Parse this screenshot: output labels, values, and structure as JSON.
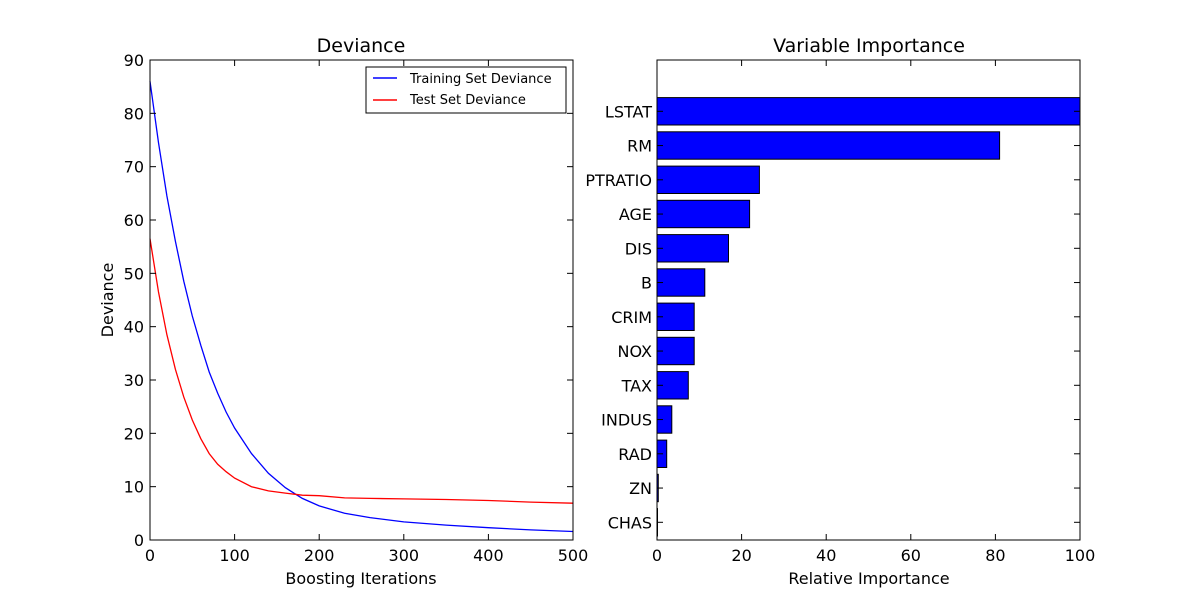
{
  "chart_data": [
    {
      "type": "line",
      "title": "Deviance",
      "xlabel": "Boosting Iterations",
      "ylabel": "Deviance",
      "xlim": [
        0,
        500
      ],
      "ylim": [
        0,
        90
      ],
      "xticks": [
        0,
        100,
        200,
        300,
        400,
        500
      ],
      "yticks": [
        0,
        10,
        20,
        30,
        40,
        50,
        60,
        70,
        80,
        90
      ],
      "grid": false,
      "legend": "top-right",
      "x": [
        0,
        10,
        20,
        30,
        40,
        50,
        60,
        70,
        80,
        90,
        100,
        120,
        140,
        160,
        180,
        200,
        230,
        260,
        300,
        350,
        400,
        450,
        500
      ],
      "series": [
        {
          "name": "Training Set Deviance",
          "color": "#0000ff",
          "values": [
            86,
            74.5,
            64.5,
            56.0,
            48.5,
            42.0,
            36.5,
            31.5,
            27.5,
            24.0,
            21.0,
            16.2,
            12.5,
            9.8,
            7.8,
            6.4,
            5.0,
            4.2,
            3.4,
            2.8,
            2.3,
            1.9,
            1.6
          ]
        },
        {
          "name": "Test Set Deviance",
          "color": "#ff0000",
          "values": [
            56.5,
            46.5,
            38.5,
            32.0,
            26.8,
            22.5,
            19.0,
            16.2,
            14.2,
            12.8,
            11.6,
            10.0,
            9.2,
            8.8,
            8.4,
            8.3,
            7.9,
            7.8,
            7.7,
            7.6,
            7.4,
            7.1,
            6.9
          ]
        }
      ]
    },
    {
      "type": "bar",
      "orientation": "horizontal",
      "title": "Variable Importance",
      "xlabel": "Relative Importance",
      "ylabel": "",
      "xlim": [
        0,
        100
      ],
      "xticks": [
        0,
        20,
        40,
        60,
        80,
        100
      ],
      "grid": false,
      "color": "#0000ff",
      "categories": [
        "LSTAT",
        "RM",
        "PTRATIO",
        "AGE",
        "DIS",
        "B",
        "CRIM",
        "NOX",
        "TAX",
        "INDUS",
        "RAD",
        "ZN",
        "CHAS"
      ],
      "values": [
        100,
        81,
        24.2,
        21.9,
        16.9,
        11.3,
        8.8,
        8.8,
        7.4,
        3.5,
        2.3,
        0.3,
        0.1
      ]
    }
  ]
}
